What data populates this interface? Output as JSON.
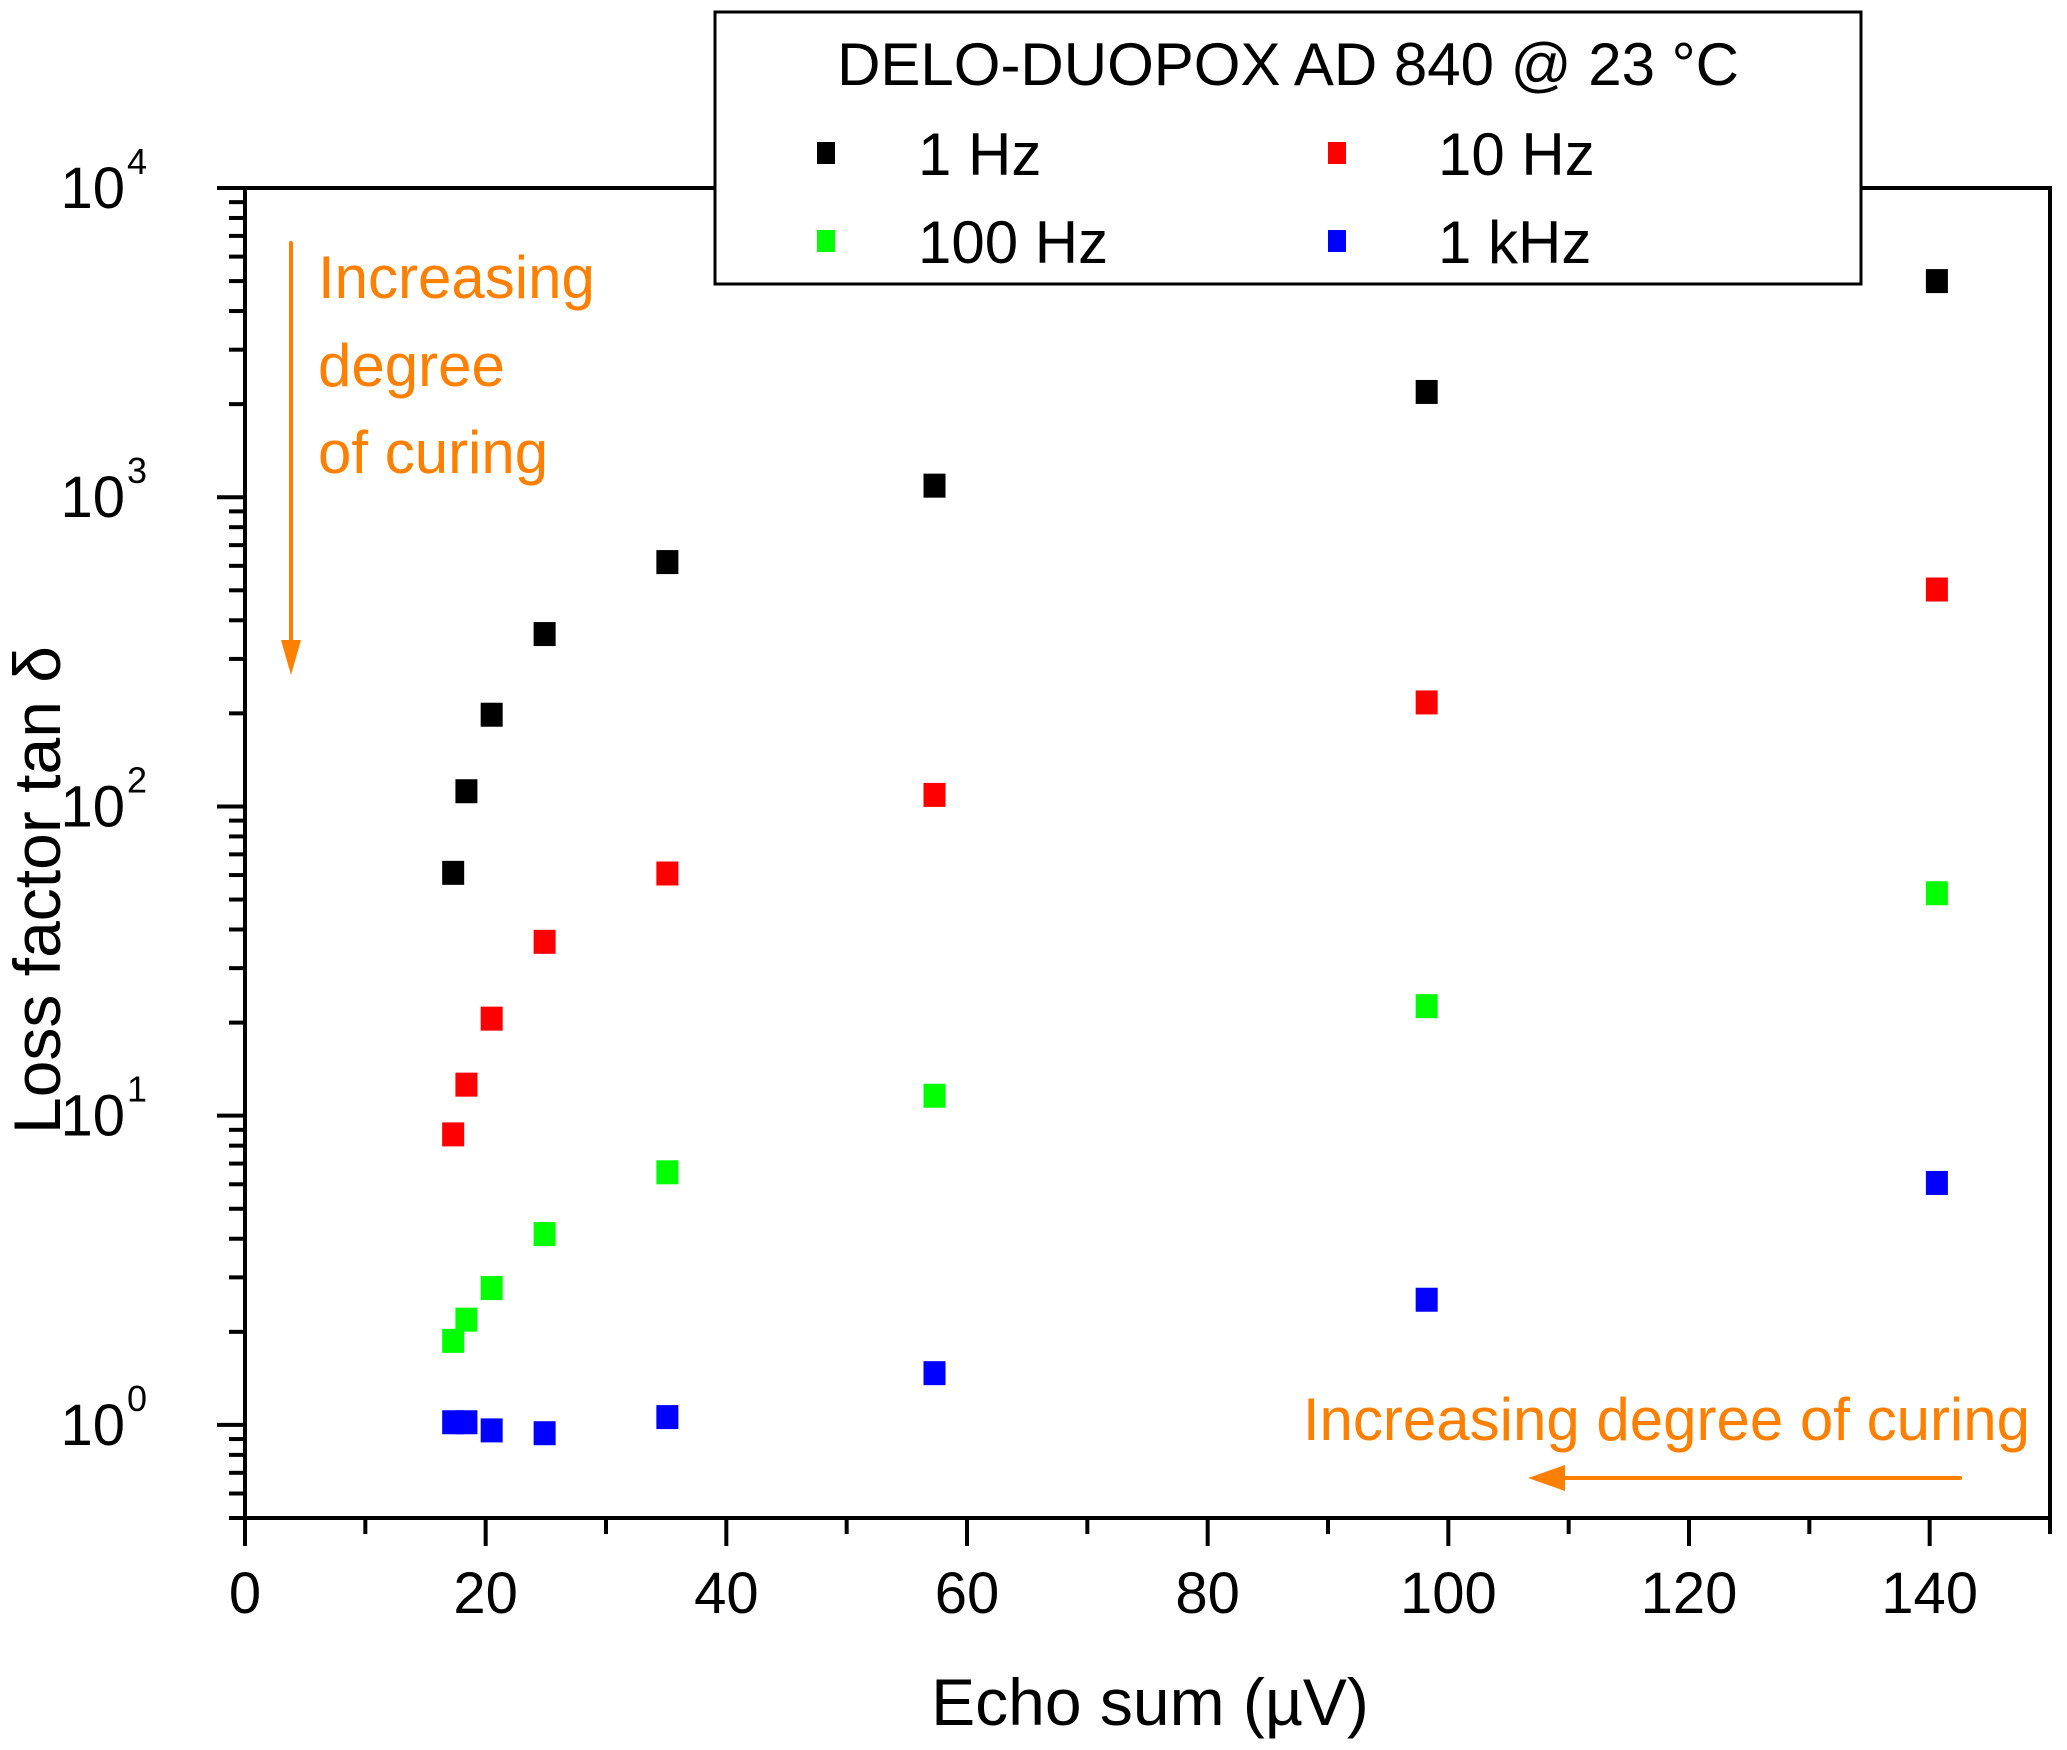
{
  "chart_data": {
    "type": "scatter",
    "title": "",
    "xlabel": "Echo sum (µV)",
    "ylabel": "Loss factor tan δ",
    "xlim": [
      0,
      150
    ],
    "ylim": [
      0.5,
      10000
    ],
    "yscale": "log",
    "grid": false,
    "x_ticks": [
      0,
      20,
      40,
      60,
      80,
      100,
      120,
      140
    ],
    "x_tick_labels": [
      "0",
      "20",
      "40",
      "60",
      "80",
      "100",
      "120",
      "140"
    ],
    "y_ticks": [
      1,
      10,
      100,
      1000,
      10000
    ],
    "y_tick_labels": [
      {
        "base": "10",
        "exp": "0"
      },
      {
        "base": "10",
        "exp": "1"
      },
      {
        "base": "10",
        "exp": "2"
      },
      {
        "base": "10",
        "exp": "3"
      },
      {
        "base": "10",
        "exp": "4"
      }
    ],
    "legend": {
      "title": "DELO-DUOPOX AD 840 @ 23 °C",
      "placement": "top-center"
    },
    "x": [
      17.3,
      18.4,
      20.5,
      24.9,
      35.1,
      57.3,
      98.2,
      140.6
    ],
    "series": [
      {
        "name": "1 Hz",
        "color": "#000000",
        "values": [
          61,
          112,
          198,
          361,
          617,
          1090,
          2190,
          5000
        ]
      },
      {
        "name": "10 Hz",
        "color": "#ff0000",
        "values": [
          8.7,
          12.6,
          20.6,
          36.5,
          60.7,
          109,
          217,
          503
        ]
      },
      {
        "name": "100 Hz",
        "color": "#00ff00",
        "values": [
          1.87,
          2.19,
          2.77,
          4.14,
          6.56,
          11.6,
          22.6,
          52.4
        ]
      },
      {
        "name": "1 kHz",
        "color": "#0000ff",
        "values": [
          1.02,
          1.02,
          0.96,
          0.94,
          1.06,
          1.47,
          2.54,
          6.06
        ]
      }
    ],
    "annotations": [
      {
        "text_lines": [
          "Increasing",
          "degree",
          "of curing"
        ],
        "color": "#ff7f00",
        "arrow": "down",
        "placement": "top-left"
      },
      {
        "text_lines": [
          "Increasing degree of curing"
        ],
        "color": "#ff7f00",
        "arrow": "left",
        "placement": "bottom-right"
      }
    ]
  }
}
